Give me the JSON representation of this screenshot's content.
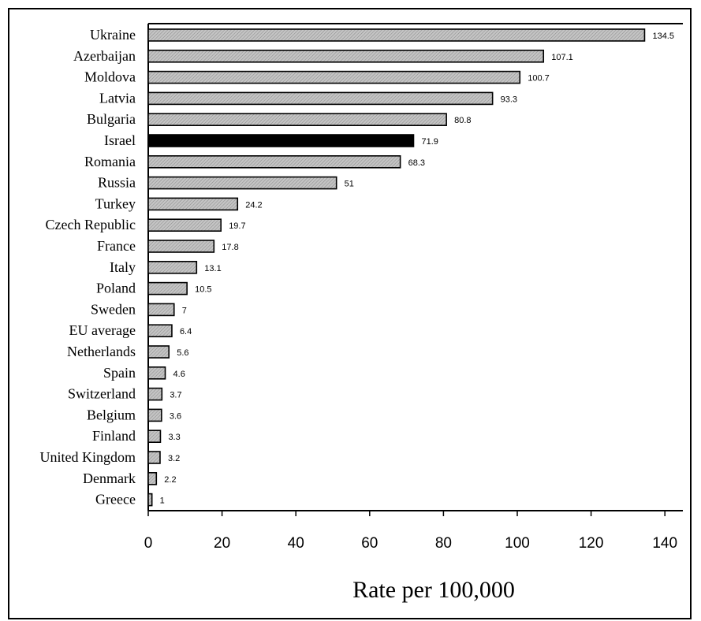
{
  "chart_data": {
    "type": "bar",
    "orientation": "horizontal",
    "title": "",
    "xlabel": "Rate per 100,000",
    "ylabel": "",
    "xlim": [
      0,
      145
    ],
    "xticks": [
      0,
      20,
      40,
      60,
      80,
      100,
      120,
      140
    ],
    "grid": false,
    "legend": "none",
    "categories": [
      "Ukraine",
      "Azerbaijan",
      "Moldova",
      "Latvia",
      "Bulgaria",
      "Israel",
      "Romania",
      "Russia",
      "Turkey",
      "Czech Republic",
      "France",
      "Italy",
      "Poland",
      "Sweden",
      "EU average",
      "Netherlands",
      "Spain",
      "Switzerland",
      "Belgium",
      "Finland",
      "United Kingdom",
      "Denmark",
      "Greece"
    ],
    "values": [
      134.5,
      107.1,
      100.7,
      93.3,
      80.8,
      71.9,
      68.3,
      51,
      24.2,
      19.7,
      17.8,
      13.1,
      10.5,
      7,
      6.4,
      5.6,
      4.6,
      3.7,
      3.6,
      3.3,
      3.2,
      2.2,
      1
    ],
    "value_labels": [
      "134.5",
      "107.1",
      "100.7",
      "93.3",
      "80.8",
      "71.9",
      "68.3",
      "51",
      "24.2",
      "19.7",
      "17.8",
      "13.1",
      "10.5",
      "7",
      "6.4",
      "5.6",
      "4.6",
      "3.7",
      "3.6",
      "3.3",
      "3.2",
      "2.2",
      "1"
    ],
    "highlight_category": "Israel",
    "colors": {
      "bar": "#b8b8b8",
      "highlight": "#000000",
      "stroke": "#000000"
    }
  }
}
